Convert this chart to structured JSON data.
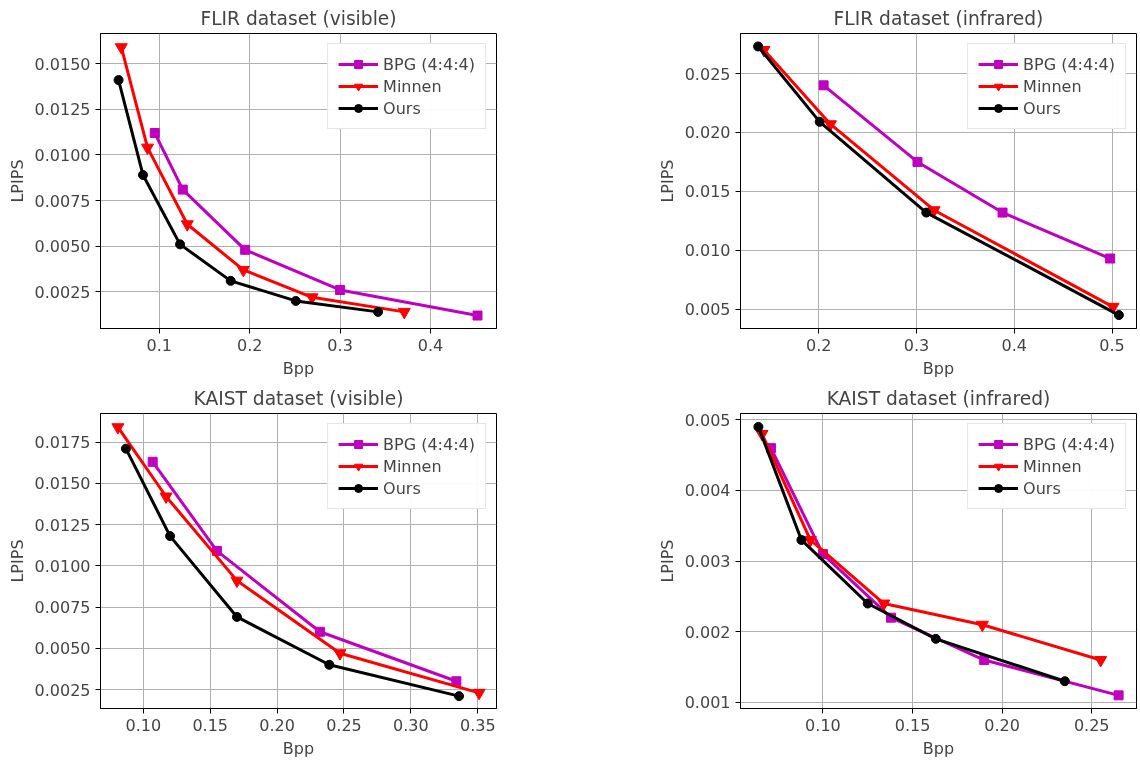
{
  "chart_data": [
    {
      "type": "line",
      "title": "FLIR dataset (visible)",
      "xlabel": "Bpp",
      "ylabel": "LPIPS",
      "xlim": [
        0.035,
        0.473
      ],
      "ylim": [
        0.00049,
        0.01665
      ],
      "xticks": [
        0.1,
        0.2,
        0.3,
        0.4
      ],
      "yticks": [
        {
          "value": 0.0025,
          "label": "0.0025"
        },
        {
          "value": 0.005,
          "label": "0.0050"
        },
        {
          "value": 0.0075,
          "label": "0.0075"
        },
        {
          "value": 0.01,
          "label": "0.0100"
        },
        {
          "value": 0.0125,
          "label": "0.0125"
        },
        {
          "value": 0.015,
          "label": "0.0150"
        }
      ],
      "grid": true,
      "legend": "top right",
      "series": [
        {
          "name": "BPG (4:4:4)",
          "color": "#bf00bf",
          "marker": "square",
          "x": [
            0.095,
            0.126,
            0.195,
            0.3,
            0.452
          ],
          "values": [
            0.0112,
            0.0081,
            0.0048,
            0.0026,
            0.0012
          ]
        },
        {
          "name": "Minnen",
          "color": "#ff0000",
          "marker": "triangle",
          "x": [
            0.058,
            0.087,
            0.131,
            0.193,
            0.269,
            0.371
          ],
          "values": [
            0.0159,
            0.0104,
            0.0062,
            0.0037,
            0.0022,
            0.0014
          ]
        },
        {
          "name": "Ours",
          "color": "#000000",
          "marker": "circle",
          "x": [
            0.055,
            0.082,
            0.123,
            0.179,
            0.251,
            0.342
          ],
          "values": [
            0.0141,
            0.0089,
            0.0051,
            0.0031,
            0.002,
            0.0014
          ]
        }
      ]
    },
    {
      "type": "line",
      "title": "FLIR dataset (infrared)",
      "xlabel": "Bpp",
      "ylabel": "LPIPS",
      "xlim": [
        0.12,
        0.525
      ],
      "ylim": [
        0.00336,
        0.0284
      ],
      "xticks": [
        0.2,
        0.3,
        0.4,
        0.5
      ],
      "yticks": [
        0.005,
        {
          "value": 0.01,
          "label": "0.010"
        },
        0.015,
        {
          "value": 0.02,
          "label": "0.020"
        },
        0.025
      ],
      "grid": true,
      "legend": "top right",
      "series": [
        {
          "name": "BPG (4:4:4)",
          "color": "#bf00bf",
          "marker": "square",
          "x": [
            0.205,
            0.301,
            0.388,
            0.498
          ],
          "values": [
            0.024,
            0.0175,
            0.0132,
            0.0093
          ]
        },
        {
          "name": "Minnen",
          "color": "#ff0000",
          "marker": "triangle",
          "x": [
            0.144,
            0.212,
            0.318,
            0.501
          ],
          "values": [
            0.027,
            0.0207,
            0.0134,
            0.0052
          ]
        },
        {
          "name": "Ours",
          "color": "#000000",
          "marker": "circle",
          "x": [
            0.138,
            0.201,
            0.31,
            0.507
          ],
          "values": [
            0.0273,
            0.0209,
            0.0132,
            0.0045
          ]
        }
      ]
    },
    {
      "type": "line",
      "title": "KAIST dataset (visible)",
      "xlabel": "Bpp",
      "ylabel": "LPIPS",
      "xlim": [
        0.068,
        0.364
      ],
      "ylim": [
        0.00135,
        0.01923
      ],
      "xticks": [
        {
          "value": 0.1,
          "label": "0.10"
        },
        0.15,
        {
          "value": 0.2,
          "label": "0.20"
        },
        0.25,
        {
          "value": 0.3,
          "label": "0.30"
        },
        0.35
      ],
      "yticks": [
        {
          "value": 0.0025,
          "label": "0.0025"
        },
        {
          "value": 0.005,
          "label": "0.0050"
        },
        {
          "value": 0.0075,
          "label": "0.0075"
        },
        {
          "value": 0.01,
          "label": "0.0100"
        },
        {
          "value": 0.0125,
          "label": "0.0125"
        },
        {
          "value": 0.015,
          "label": "0.0150"
        },
        {
          "value": 0.0175,
          "label": "0.0175"
        }
      ],
      "grid": true,
      "legend": "top right",
      "series": [
        {
          "name": "BPG (4:4:4)",
          "color": "#bf00bf",
          "marker": "square",
          "x": [
            0.107,
            0.155,
            0.232,
            0.334
          ],
          "values": [
            0.0163,
            0.0109,
            0.006,
            0.003
          ]
        },
        {
          "name": "Minnen",
          "color": "#ff0000",
          "marker": "triangle",
          "x": [
            0.081,
            0.117,
            0.17,
            0.247,
            0.351
          ],
          "values": [
            0.0184,
            0.0142,
            0.0091,
            0.0047,
            0.0023
          ]
        },
        {
          "name": "Ours",
          "color": "#000000",
          "marker": "circle",
          "x": [
            0.087,
            0.12,
            0.17,
            0.239,
            0.336
          ],
          "values": [
            0.0171,
            0.0118,
            0.0069,
            0.004,
            0.0021
          ]
        }
      ]
    },
    {
      "type": "line",
      "title": "KAIST dataset (infrared)",
      "xlabel": "Bpp",
      "ylabel": "LPIPS",
      "xlim": [
        0.054,
        0.275
      ],
      "ylim": [
        0.000914,
        0.00509
      ],
      "xticks": [
        {
          "value": 0.1,
          "label": "0.10"
        },
        0.15,
        {
          "value": 0.2,
          "label": "0.20"
        },
        0.25
      ],
      "yticks": [
        0.001,
        0.002,
        0.003,
        0.004,
        0.005
      ],
      "grid": true,
      "legend": "top right",
      "series": [
        {
          "name": "BPG (4:4:4)",
          "color": "#bf00bf",
          "marker": "square",
          "x": [
            0.071,
            0.1,
            0.138,
            0.19,
            0.265
          ],
          "values": [
            0.0046,
            0.0031,
            0.0022,
            0.0016,
            0.0011
          ]
        },
        {
          "name": "Minnen",
          "color": "#ff0000",
          "marker": "triangle",
          "x": [
            0.066,
            0.093,
            0.134,
            0.189,
            0.255
          ],
          "values": [
            0.0048,
            0.0033,
            0.0024,
            0.0021,
            0.0016
          ]
        },
        {
          "name": "Ours",
          "color": "#000000",
          "marker": "circle",
          "x": [
            0.064,
            0.088,
            0.125,
            0.163,
            0.235
          ],
          "values": [
            0.0049,
            0.0033,
            0.0024,
            0.0019,
            0.0013
          ]
        }
      ]
    }
  ]
}
